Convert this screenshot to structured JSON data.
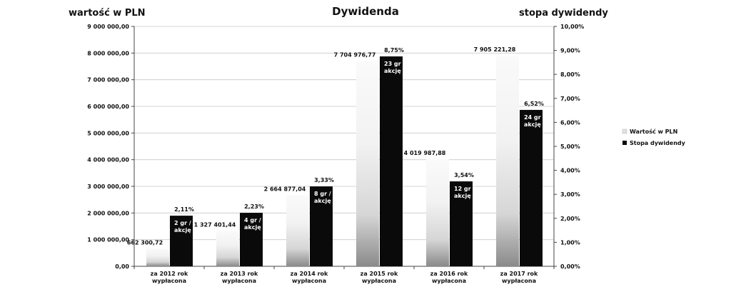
{
  "chart_data": {
    "type": "bar",
    "title": "Dywidenda",
    "ylabel_left": "wartość w PLN",
    "ylabel_right": "stopa dywidendy",
    "ylim_left": [
      0,
      9000000
    ],
    "ylim_right": [
      0,
      10
    ],
    "left_ticks": [
      "0,00",
      "1 000 000,00",
      "2 000 000,00",
      "3 000 000,00",
      "4 000 000,00",
      "5 000 000,00",
      "6 000 000,00",
      "7 000 000,00",
      "8 000 000,00",
      "9 000 000,00"
    ],
    "right_ticks": [
      "0,00%",
      "1,00%",
      "2,00%",
      "3,00%",
      "4,00%",
      "5,00%",
      "6,00%",
      "7,00%",
      "8,00%",
      "9,00%",
      "10,00%"
    ],
    "categories": [
      [
        "za 2012 rok",
        "wypłacona"
      ],
      [
        "za 2013 rok",
        "wypłacona"
      ],
      [
        "za 2014 rok",
        "wypłacona"
      ],
      [
        "za 2015 rok",
        "wypłacona"
      ],
      [
        "za 2016 rok",
        "wypłacona"
      ],
      [
        "za 2017 rok",
        "wypłacona"
      ]
    ],
    "series": [
      {
        "name": "Wartość w PLN",
        "axis": "left",
        "color": "#e8e8e8",
        "values": [
          662300.72,
          1327401.44,
          2664877.04,
          7704976.77,
          4019987.88,
          7905221.28
        ],
        "labels": [
          "662 300,72",
          "1 327 401,44",
          "2 664 877,04",
          "7 704 976,77",
          "4 019 987,88",
          "7 905 221,28"
        ]
      },
      {
        "name": "Stopa dywidendy",
        "axis": "right",
        "color": "#0a0a0a",
        "values": [
          2.11,
          2.23,
          3.33,
          8.75,
          3.54,
          6.52
        ],
        "labels": [
          "2,11%",
          "2,23%",
          "3,33%",
          "8,75%",
          "3,54%",
          "6,52%"
        ],
        "inner_labels": [
          [
            "2 gr /",
            "akcję"
          ],
          [
            "4 gr /",
            "akcję"
          ],
          [
            "8 gr /",
            "akcję"
          ],
          [
            "23 gr /",
            "akcję"
          ],
          [
            "12 gr /",
            "akcję"
          ],
          [
            "24 gr /",
            "akcję"
          ]
        ]
      }
    ],
    "legend": {
      "position": "right"
    },
    "grid": true
  }
}
